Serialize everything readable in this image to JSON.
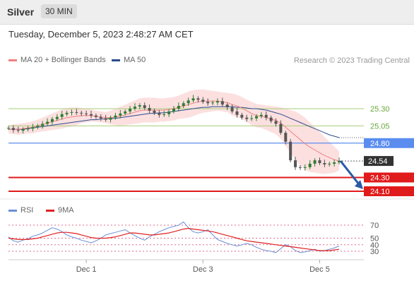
{
  "header": {
    "title": "Silver",
    "timeframe": "30 MIN"
  },
  "timestamp": "Tuesday, December 5, 2023 2:48:27 AM CET",
  "credit": "Research © 2023 Trading Central",
  "legend_top": [
    {
      "label": "MA 20 + Bollinger Bands",
      "color": "#f08080"
    },
    {
      "label": "MA 50",
      "color": "#2a4a8c"
    }
  ],
  "legend_bottom": [
    {
      "label": "RSI",
      "color": "#6b8fd6"
    },
    {
      "label": "9MA",
      "color": "#e02020"
    }
  ],
  "chart_data": [
    {
      "type": "line",
      "title": "Silver",
      "x_ticks": [
        "Dec 1",
        "Dec 3",
        "Dec 5"
      ],
      "ylim": [
        23.95,
        25.55
      ],
      "series": [
        {
          "name": "Price",
          "color": "#2e7d32",
          "values": [
            25.02,
            24.99,
            24.98,
            25.0,
            25.01,
            25.03,
            25.05,
            25.08,
            25.11,
            25.15,
            25.18,
            25.22,
            25.24,
            25.25,
            25.24,
            25.23,
            25.22,
            25.2,
            25.18,
            25.16,
            25.14,
            25.17,
            25.2,
            25.23,
            25.26,
            25.3,
            25.33,
            25.35,
            25.31,
            25.27,
            25.24,
            25.21,
            25.22,
            25.26,
            25.3,
            25.34,
            25.38,
            25.42,
            25.45,
            25.43,
            25.4,
            25.38,
            25.39,
            25.41,
            25.36,
            25.32,
            25.26,
            25.21,
            25.17,
            25.15,
            25.16,
            25.19,
            25.21,
            25.17,
            25.12,
            25.08,
            24.95,
            24.82,
            24.55,
            24.45,
            24.44,
            24.45,
            24.5,
            24.55,
            24.51,
            24.49,
            24.5,
            24.52,
            24.54
          ]
        },
        {
          "name": "MA 20",
          "color": "#f08080",
          "values": [
            25.0,
            25.0,
            25.0,
            25.01,
            25.02,
            25.03,
            25.05,
            25.07,
            25.09,
            25.11,
            25.13,
            25.15,
            25.17,
            25.18,
            25.19,
            25.2,
            25.2,
            25.2,
            25.19,
            25.18,
            25.17,
            25.17,
            25.18,
            25.19,
            25.21,
            25.23,
            25.25,
            25.27,
            25.28,
            25.28,
            25.28,
            25.28,
            25.28,
            25.29,
            25.3,
            25.32,
            25.34,
            25.36,
            25.38,
            25.4,
            25.41,
            25.41,
            25.41,
            25.41,
            25.4,
            25.39,
            25.36,
            25.34,
            25.31,
            25.27,
            25.23,
            25.2,
            25.19,
            25.17,
            25.15,
            25.13,
            25.09,
            25.03,
            24.97,
            24.91,
            24.85,
            24.79,
            24.74,
            24.7,
            24.66,
            24.62,
            24.59,
            24.56,
            24.54
          ]
        },
        {
          "name": "MA 50",
          "color": "#2a4a8c",
          "values": [
            25.0,
            25.0,
            25.0,
            25.0,
            25.01,
            25.02,
            25.03,
            25.04,
            25.05,
            25.06,
            25.07,
            25.08,
            25.09,
            25.1,
            25.11,
            25.12,
            25.13,
            25.14,
            25.14,
            25.15,
            25.15,
            25.16,
            25.16,
            25.17,
            25.18,
            25.19,
            25.2,
            25.21,
            25.22,
            25.23,
            25.23,
            25.24,
            25.24,
            25.25,
            25.26,
            25.27,
            25.28,
            25.29,
            25.3,
            25.31,
            25.32,
            25.32,
            25.33,
            25.33,
            25.33,
            25.33,
            25.33,
            25.32,
            25.32,
            25.31,
            25.3,
            25.3,
            25.29,
            25.28,
            25.26,
            25.24,
            25.22,
            25.19,
            25.16,
            25.13,
            25.1,
            25.07,
            25.04,
            25.01,
            24.98,
            24.95,
            24.92,
            24.9,
            24.88
          ]
        },
        {
          "name": "Bollinger Upper",
          "color": "#f8d0d0",
          "values": [
            25.06,
            25.07,
            25.08,
            25.09,
            25.1,
            25.12,
            25.14,
            25.17,
            25.2,
            25.23,
            25.26,
            25.29,
            25.31,
            25.32,
            25.32,
            25.31,
            25.3,
            25.29,
            25.27,
            25.26,
            25.25,
            25.27,
            25.3,
            25.33,
            25.36,
            25.39,
            25.42,
            25.45,
            25.46,
            25.46,
            25.46,
            25.45,
            25.45,
            25.46,
            25.47,
            25.49,
            25.52,
            25.55,
            25.57,
            25.58,
            25.58,
            25.57,
            25.56,
            25.55,
            25.54,
            25.53,
            25.52,
            25.5,
            25.47,
            25.43,
            25.4,
            25.37,
            25.36,
            25.35,
            25.34,
            25.33,
            25.32,
            25.3,
            25.28,
            25.26,
            25.22,
            25.17,
            25.1,
            25.03,
            24.96,
            24.89,
            24.82,
            24.75,
            24.68
          ]
        },
        {
          "name": "Bollinger Lower",
          "color": "#f8d0d0",
          "values": [
            24.94,
            24.93,
            24.92,
            24.93,
            24.94,
            24.94,
            24.96,
            24.97,
            24.98,
            24.99,
            25.0,
            25.01,
            25.03,
            25.04,
            25.06,
            25.09,
            25.1,
            25.11,
            25.11,
            25.1,
            25.09,
            25.07,
            25.06,
            25.05,
            25.06,
            25.07,
            25.08,
            25.09,
            25.1,
            25.1,
            25.1,
            25.11,
            25.11,
            25.12,
            25.13,
            25.15,
            25.16,
            25.17,
            25.19,
            25.22,
            25.24,
            25.25,
            25.26,
            25.27,
            25.26,
            25.25,
            25.2,
            25.18,
            25.15,
            25.11,
            25.06,
            25.03,
            25.02,
            24.99,
            24.96,
            24.93,
            24.86,
            24.76,
            24.66,
            24.56,
            24.48,
            24.41,
            24.38,
            24.37,
            24.36,
            24.35,
            24.36,
            24.37,
            24.4
          ]
        }
      ],
      "levels": [
        {
          "label": "25.30",
          "value": 25.3,
          "style": "green"
        },
        {
          "label": "25.05",
          "value": 25.05,
          "style": "green"
        },
        {
          "label": "24.80",
          "value": 24.8,
          "style": "blue"
        },
        {
          "label": "24.54",
          "value": 24.54,
          "style": "current"
        },
        {
          "label": "24.30",
          "value": 24.3,
          "style": "red"
        },
        {
          "label": "24.10",
          "value": 24.1,
          "style": "red"
        }
      ],
      "forecast_arrow": {
        "from": 24.54,
        "to": 24.1,
        "color": "#2a5aa8"
      }
    },
    {
      "type": "line",
      "title": "RSI",
      "x_ticks": [
        "Dec 1",
        "Dec 3",
        "Dec 5"
      ],
      "ylim": [
        20,
        85
      ],
      "y_ticks": [
        "70",
        "50",
        "40",
        "30"
      ],
      "series": [
        {
          "name": "RSI",
          "color": "#6b8fd6",
          "values": [
            52,
            46,
            44,
            47,
            49,
            53,
            55,
            58,
            62,
            66,
            64,
            60,
            55,
            52,
            50,
            47,
            45,
            43,
            46,
            50,
            55,
            57,
            59,
            61,
            63,
            58,
            54,
            50,
            47,
            52,
            56,
            60,
            63,
            66,
            68,
            70,
            75,
            66,
            60,
            58,
            60,
            63,
            55,
            48,
            45,
            42,
            40,
            38,
            40,
            42,
            40,
            36,
            33,
            31,
            30,
            28,
            34,
            40,
            37,
            31,
            28,
            29,
            31,
            33,
            30,
            31,
            33,
            35,
            38
          ]
        },
        {
          "name": "9MA",
          "color": "#e02020",
          "values": [
            50,
            49,
            48,
            48,
            48,
            49,
            50,
            52,
            54,
            56,
            58,
            59,
            59,
            58,
            57,
            55,
            53,
            51,
            50,
            50,
            50,
            51,
            52,
            54,
            56,
            58,
            58,
            57,
            56,
            55,
            55,
            56,
            57,
            58,
            60,
            62,
            64,
            65,
            64,
            63,
            62,
            61,
            60,
            58,
            56,
            54,
            52,
            50,
            48,
            46,
            45,
            44,
            43,
            42,
            41,
            40,
            39,
            38,
            37,
            36,
            35,
            34,
            33,
            32,
            31,
            31,
            31,
            32,
            33
          ]
        }
      ],
      "levels": [
        70,
        50,
        40,
        30
      ]
    }
  ]
}
